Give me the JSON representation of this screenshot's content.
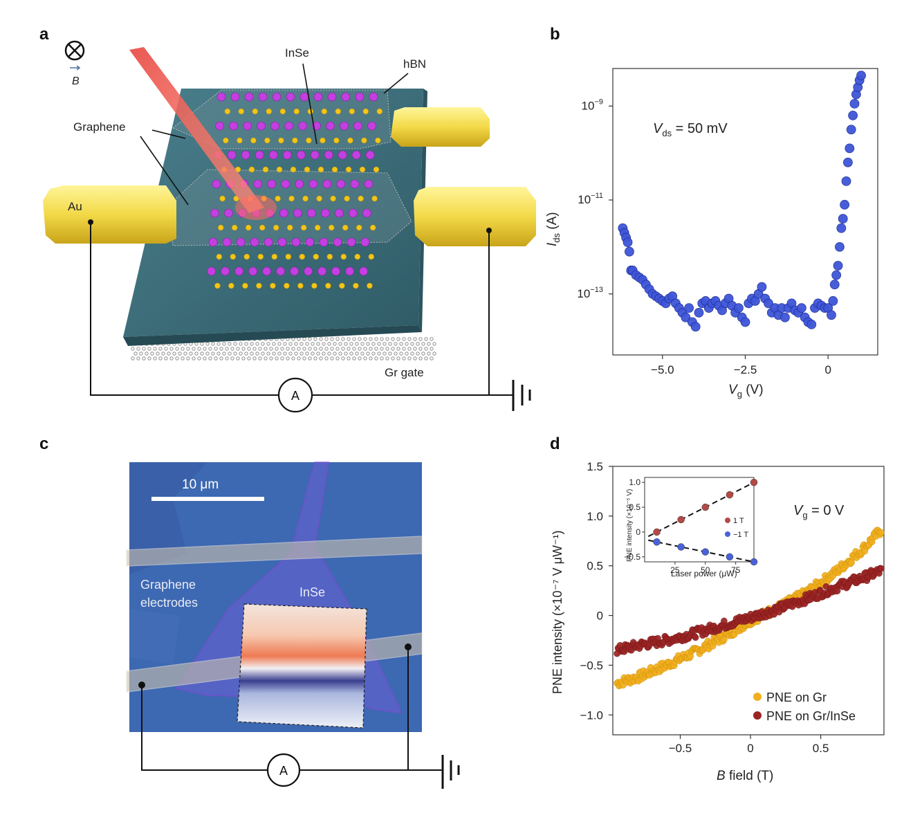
{
  "panels": {
    "a": {
      "letter": "a",
      "labels": {
        "b_field_symbol": "B",
        "inse": "InSe",
        "hbn": "hBN",
        "graphene": "Graphene",
        "au": "Au",
        "gr_gate": "Gr gate",
        "ammeter": "A"
      }
    },
    "b": {
      "letter": "b",
      "annotation_main": "V",
      "annotation_sub": "ds",
      "annotation_rest": " = 50 mV",
      "ylabel_main": "I",
      "ylabel_sub": "ds",
      "ylabel_rest": " (A)",
      "xlabel_main": "V",
      "xlabel_sub": "g",
      "xlabel_rest": " (V)",
      "xticks": [
        "−5.0",
        "−2.5",
        "0"
      ],
      "yticks": [
        {
          "base": "10",
          "exp": "−9"
        },
        {
          "base": "10",
          "exp": "−11"
        },
        {
          "base": "10",
          "exp": "−13"
        }
      ]
    },
    "c": {
      "letter": "c",
      "scalebar": "10 μm",
      "label_graphene_1": "Graphene",
      "label_graphene_2": "electrodes",
      "label_inse": "InSe",
      "ammeter": "A"
    },
    "d": {
      "letter": "d",
      "annotation_main": "V",
      "annotation_sub": "g",
      "annotation_rest": " = 0 V",
      "ylabel": "PNE intensity (×10⁻⁷ V μW⁻¹)",
      "xlabel_main": "B",
      "xlabel_rest": " field (T)",
      "xticks": [
        "−0.5",
        "0",
        "0.5"
      ],
      "yticks": [
        "1.5",
        "1.0",
        "0.5",
        "0",
        "−0.5",
        "−1.0"
      ],
      "legend": [
        "PNE on Gr",
        "PNE on Gr/InSe"
      ],
      "inset": {
        "xlabel": "Laser power (μW)",
        "ylabel": "PNE intensity (×10⁻⁵ V)",
        "xticks": [
          "25",
          "50",
          "75"
        ],
        "yticks": [
          "1.0",
          "0.5",
          "0",
          "−0.5"
        ],
        "legend": [
          "1 T",
          "−1 T"
        ]
      }
    }
  },
  "colors": {
    "blue_points": "#3f56d8",
    "yellow_points": "#f2b01e",
    "red_points": "#9c2424",
    "inset_red": "#b34a45",
    "inset_blue": "#4a62d8",
    "au": "#f5e05a",
    "hbn": "#3c6b78",
    "laser": "#e8504a"
  },
  "chart_data": [
    {
      "panel": "b",
      "type": "scatter",
      "xlabel": "Vg (V)",
      "ylabel": "Ids (A)",
      "log_y": true,
      "xlim": [
        -6.5,
        1.5
      ],
      "ylim_log10": [
        -14.3,
        -8.2
      ],
      "series": [
        {
          "color": "#3f56d8",
          "x": [
            -6.2,
            -6.15,
            -6.1,
            -6.05,
            -6.0,
            -5.95,
            -5.9,
            -5.8,
            -5.7,
            -5.6,
            -5.5,
            -5.4,
            -5.3,
            -5.2,
            -5.1,
            -5.0,
            -4.9,
            -4.8,
            -4.7,
            -4.6,
            -4.5,
            -4.4,
            -4.3,
            -4.2,
            -4.1,
            -4.0,
            -3.9,
            -3.8,
            -3.7,
            -3.6,
            -3.5,
            -3.4,
            -3.3,
            -3.2,
            -3.1,
            -3.0,
            -2.9,
            -2.8,
            -2.7,
            -2.6,
            -2.5,
            -2.4,
            -2.3,
            -2.2,
            -2.1,
            -2.0,
            -1.9,
            -1.8,
            -1.7,
            -1.6,
            -1.5,
            -1.4,
            -1.3,
            -1.2,
            -1.1,
            -1.0,
            -0.9,
            -0.8,
            -0.7,
            -0.6,
            -0.5,
            -0.4,
            -0.3,
            -0.2,
            -0.1,
            0.0,
            0.1,
            0.15,
            0.2,
            0.25,
            0.3,
            0.35,
            0.4,
            0.45,
            0.5,
            0.55,
            0.6,
            0.65,
            0.7,
            0.75,
            0.8,
            0.85,
            0.9,
            0.95,
            1.0
          ],
          "y_log10": [
            -11.6,
            -11.7,
            -11.8,
            -11.9,
            -12.1,
            -12.5,
            -12.5,
            -12.6,
            -12.65,
            -12.7,
            -12.8,
            -12.9,
            -13.0,
            -13.05,
            -13.1,
            -13.15,
            -13.2,
            -13.1,
            -13.05,
            -13.2,
            -13.3,
            -13.4,
            -13.5,
            -13.3,
            -13.6,
            -13.7,
            -13.4,
            -13.2,
            -13.15,
            -13.3,
            -13.2,
            -13.15,
            -13.25,
            -13.35,
            -13.2,
            -13.1,
            -13.25,
            -13.4,
            -13.3,
            -13.5,
            -13.6,
            -13.2,
            -13.1,
            -13.15,
            -13.0,
            -12.85,
            -13.1,
            -13.2,
            -13.4,
            -13.3,
            -13.45,
            -13.3,
            -13.5,
            -13.3,
            -13.2,
            -13.35,
            -13.4,
            -13.3,
            -13.5,
            -13.6,
            -13.65,
            -13.3,
            -13.2,
            -13.25,
            -13.3,
            -13.3,
            -13.45,
            -13.15,
            -12.8,
            -12.6,
            -12.4,
            -12.0,
            -11.6,
            -11.4,
            -11.1,
            -10.6,
            -10.2,
            -9.9,
            -9.5,
            -9.2,
            -8.95,
            -8.75,
            -8.6,
            -8.45,
            -8.35
          ]
        }
      ]
    },
    {
      "panel": "d",
      "type": "scatter",
      "xlabel": "B field (T)",
      "ylabel": "PNE intensity (×10⁻⁷ V μW⁻¹)",
      "xlim": [
        -0.98,
        0.95
      ],
      "ylim": [
        -1.2,
        1.5
      ],
      "series": [
        {
          "name": "PNE on Gr",
          "color": "#f2b01e",
          "trend": {
            "x": [
              -0.95,
              -0.8,
              -0.6,
              -0.4,
              -0.2,
              0.0,
              0.2,
              0.4,
              0.6,
              0.8,
              0.93
            ],
            "y": [
              -0.68,
              -0.62,
              -0.5,
              -0.37,
              -0.22,
              -0.05,
              0.08,
              0.23,
              0.43,
              0.67,
              0.86
            ]
          }
        },
        {
          "name": "PNE on Gr/InSe",
          "color": "#9c2424",
          "trend": {
            "x": [
              -0.95,
              -0.8,
              -0.6,
              -0.4,
              -0.2,
              0.0,
              0.2,
              0.4,
              0.6,
              0.8,
              0.93
            ],
            "y": [
              -0.35,
              -0.3,
              -0.25,
              -0.18,
              -0.1,
              -0.02,
              0.07,
              0.17,
              0.28,
              0.38,
              0.45
            ]
          }
        }
      ]
    },
    {
      "panel": "d-inset",
      "type": "line",
      "xlabel": "Laser power (μW)",
      "ylabel": "PNE intensity (×10⁻⁵ V)",
      "xlim": [
        0,
        90
      ],
      "ylim": [
        -0.6,
        1.1
      ],
      "series": [
        {
          "name": "1 T",
          "color": "#b34a45",
          "x": [
            10,
            30,
            50,
            70,
            90
          ],
          "y": [
            0.0,
            0.25,
            0.5,
            0.75,
            1.0
          ]
        },
        {
          "name": "−1 T",
          "color": "#4a62d8",
          "x": [
            10,
            30,
            50,
            70,
            90
          ],
          "y": [
            -0.2,
            -0.3,
            -0.4,
            -0.5,
            -0.6
          ]
        }
      ]
    }
  ]
}
